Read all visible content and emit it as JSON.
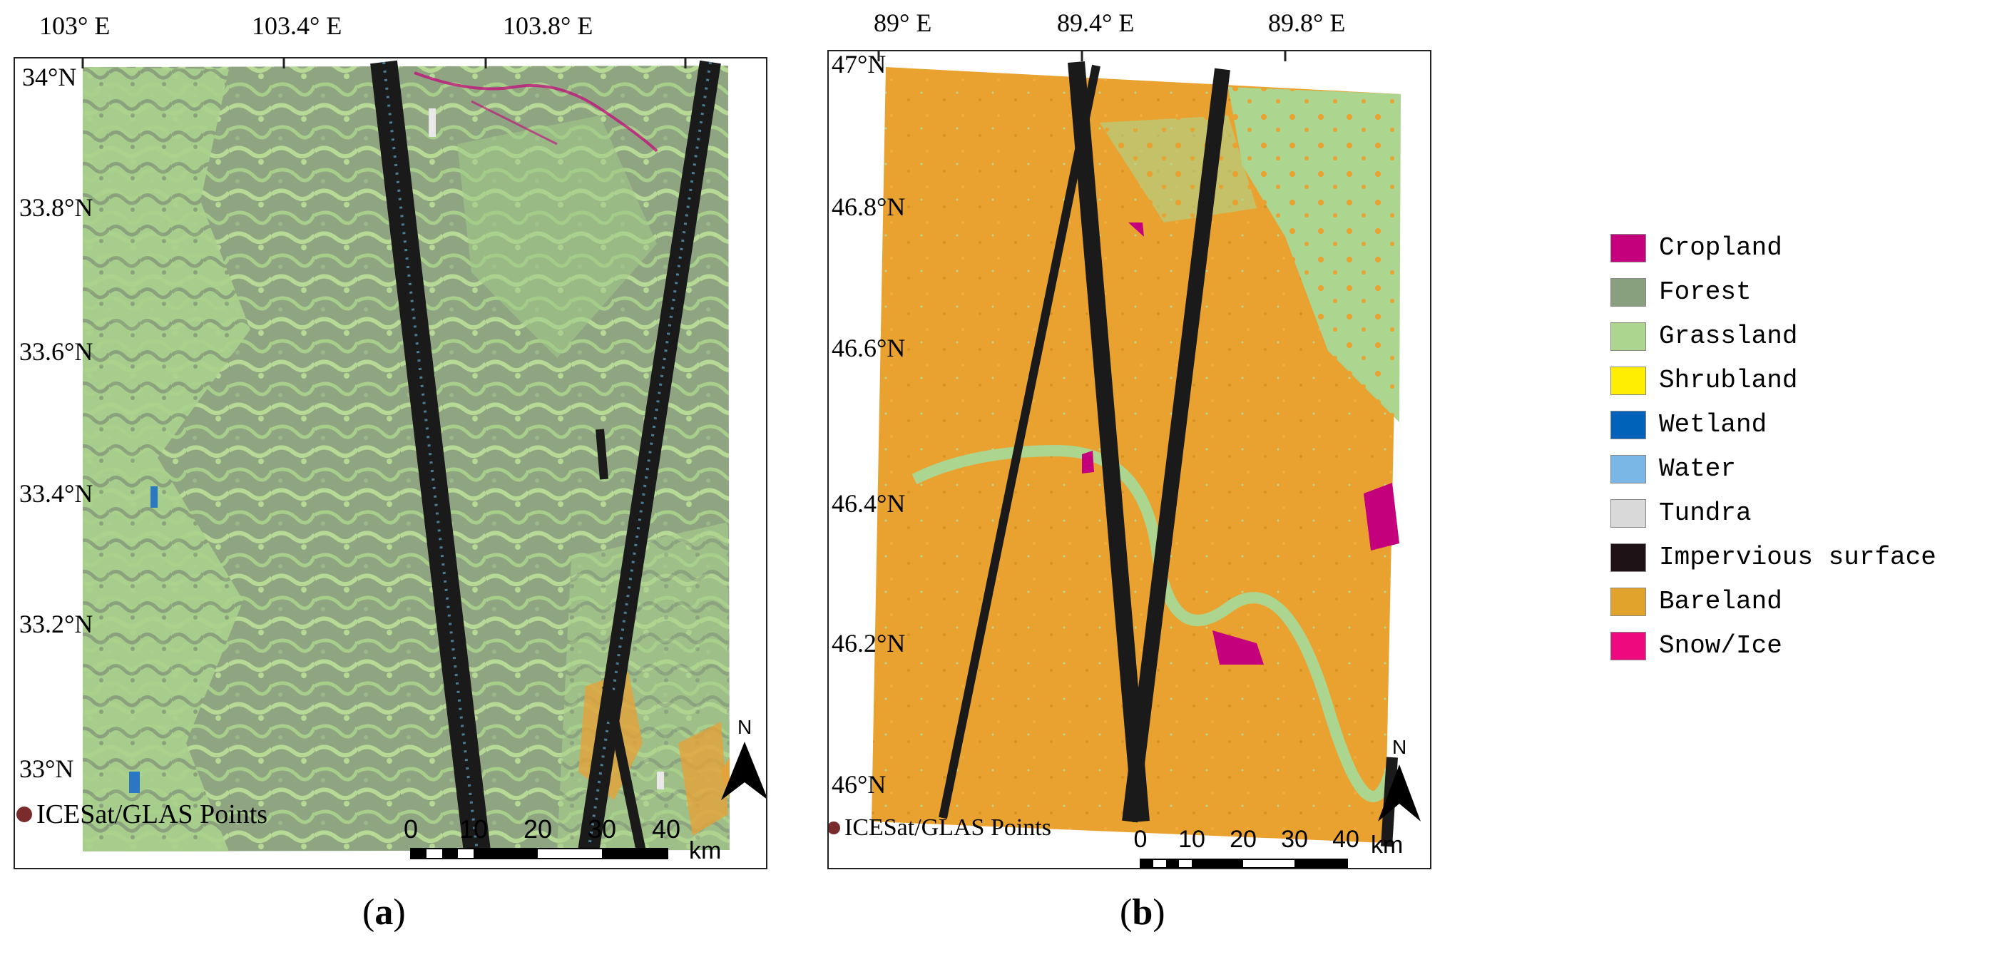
{
  "panel_a": {
    "lon_labels": [
      "103° E",
      "103.4° E",
      "103.8° E"
    ],
    "lat_labels": [
      "34°N",
      "33.8°N",
      "33.6°N",
      "33.4°N",
      "33.2°N",
      "33°N"
    ],
    "points_label": "ICESat/GLAS Points",
    "scale_numbers": [
      "0",
      "10",
      "20",
      "30",
      "40"
    ],
    "scale_unit": "km",
    "north": "N",
    "caption_open": "(",
    "caption_letter": "a",
    "caption_close": ")"
  },
  "panel_b": {
    "lon_labels": [
      "89° E",
      "89.4° E",
      "89.8° E"
    ],
    "lat_labels": [
      "47°N",
      "46.8°N",
      "46.6°N",
      "46.4°N",
      "46.2°N",
      "46°N"
    ],
    "points_label": "ICESat/GLAS Points",
    "scale_numbers": [
      "0",
      "10",
      "20",
      "30",
      "40"
    ],
    "scale_unit": "km",
    "north": "N",
    "caption_open": "(",
    "caption_letter": "b",
    "caption_close": ")"
  },
  "legend": [
    {
      "label": "Cropland",
      "color": "#c4007c"
    },
    {
      "label": "Forest",
      "color": "#88a07e"
    },
    {
      "label": "Grassland",
      "color": "#acd58f"
    },
    {
      "label": "Shrubland",
      "color": "#ffee00"
    },
    {
      "label": "Wetland",
      "color": "#0062b8"
    },
    {
      "label": "Water",
      "color": "#7ab6e6"
    },
    {
      "label": "Tundra",
      "color": "#d9d9d9"
    },
    {
      "label": "Impervious surface",
      "color": "#1f1216"
    },
    {
      "label": "Bareland",
      "color": "#e2a32c"
    },
    {
      "label": "Snow/Ice",
      "color": "#ee0a7e"
    }
  ],
  "colors": {
    "forest": "#88a07e",
    "grassland": "#acd58f",
    "bareland": "#e9a22f",
    "track": "#1a1a1a",
    "track_points": "#5fa8c9",
    "points_dot": "#7a2b2b"
  }
}
